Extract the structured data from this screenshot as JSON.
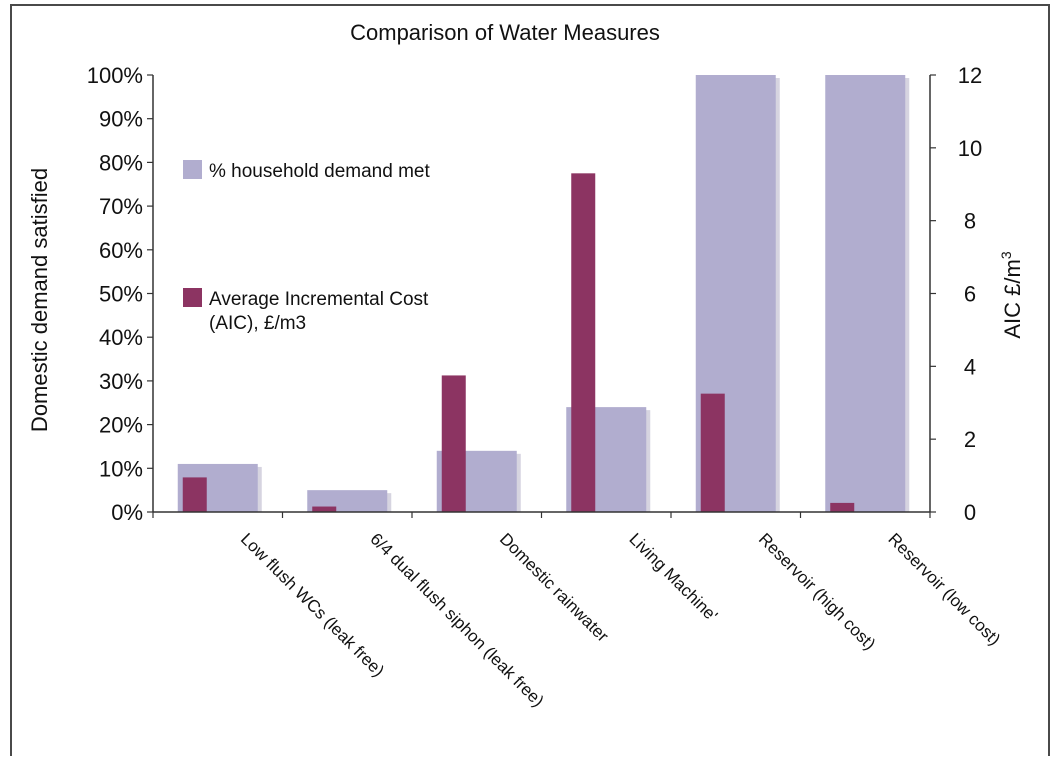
{
  "chart_data": {
    "type": "bar",
    "title": "Comparison of Water Measures",
    "categories": [
      "Low flush WCs (leak free)",
      "6/4 dual flush siphon (leak free)",
      "Domestic rainwater",
      "Living Machine'",
      "Reservoir (high cost)",
      "Reservoir (low cost)"
    ],
    "series": [
      {
        "name": "% household demand met",
        "axis": "left",
        "color": "#b1adcf",
        "values": [
          11,
          5,
          14,
          24,
          100,
          100
        ]
      },
      {
        "name": "Average Incremental Cost (AIC), £/m3",
        "axis": "right",
        "color": "#8c3462",
        "values": [
          0.95,
          0.15,
          3.75,
          9.3,
          3.25,
          0.25
        ]
      }
    ],
    "ylabel": "Domestic demand satisfied",
    "y2label_base": "AIC £/m",
    "y2label_sup": "3",
    "ylim": [
      0,
      100
    ],
    "y2lim": [
      0,
      12
    ],
    "yticks": [
      "0%",
      "10%",
      "20%",
      "30%",
      "40%",
      "50%",
      "60%",
      "70%",
      "80%",
      "90%",
      "100%"
    ],
    "y2ticks": [
      "0",
      "2",
      "4",
      "6",
      "8",
      "10",
      "12"
    ],
    "legend": {
      "position": "upper-left-inside",
      "items": [
        {
          "lines": [
            "% household demand met"
          ],
          "color": "#b1adcf"
        },
        {
          "lines": [
            "Average Incremental Cost",
            "(AIC), £/m3"
          ],
          "color": "#8c3462"
        }
      ]
    },
    "grid": false
  }
}
